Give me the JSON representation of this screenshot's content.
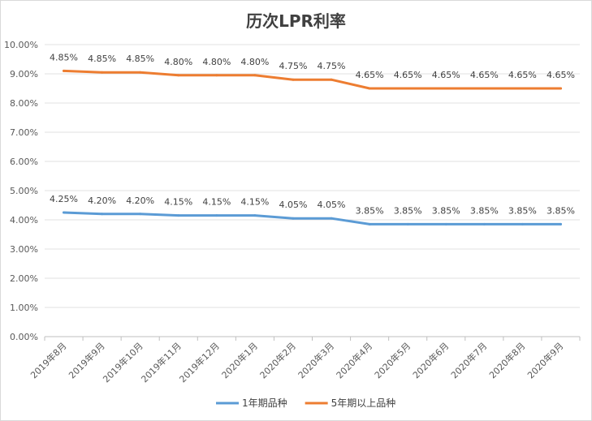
{
  "chart_data": {
    "type": "line",
    "title": "历次LPR利率",
    "xlabel": "",
    "ylabel": "",
    "ylim": [
      0,
      10
    ],
    "yticks": [
      "0.00%",
      "1.00%",
      "2.00%",
      "3.00%",
      "4.00%",
      "5.00%",
      "6.00%",
      "7.00%",
      "8.00%",
      "9.00%",
      "10.00%"
    ],
    "grid": true,
    "legend_position": "bottom",
    "categories": [
      "2019年8月",
      "2019年9月",
      "2019年10月",
      "2019年11月",
      "2019年12月",
      "2020年1月",
      "2020年2月",
      "2020年3月",
      "2020年4月",
      "2020年5月",
      "2020年6月",
      "2020年7月",
      "2020年8月",
      "2020年9月"
    ],
    "series": [
      {
        "name": "1年期品种",
        "color": "#5b9bd5",
        "values": [
          4.25,
          4.2,
          4.2,
          4.15,
          4.15,
          4.15,
          4.05,
          4.05,
          3.85,
          3.85,
          3.85,
          3.85,
          3.85,
          3.85
        ],
        "labels": [
          "4.25%",
          "4.20%",
          "4.20%",
          "4.15%",
          "4.15%",
          "4.15%",
          "4.05%",
          "4.05%",
          "3.85%",
          "3.85%",
          "3.85%",
          "3.85%",
          "3.85%",
          "3.85%"
        ]
      },
      {
        "name": "5年期以上品种",
        "color": "#ed7d31",
        "values": [
          9.1,
          9.05,
          9.05,
          8.95,
          8.95,
          8.95,
          8.8,
          8.8,
          8.5,
          8.5,
          8.5,
          8.5,
          8.5,
          8.5
        ],
        "labels": [
          "4.85%",
          "4.85%",
          "4.85%",
          "4.80%",
          "4.80%",
          "4.80%",
          "4.75%",
          "4.75%",
          "4.65%",
          "4.65%",
          "4.65%",
          "4.65%",
          "4.65%",
          "4.65%"
        ]
      }
    ]
  }
}
